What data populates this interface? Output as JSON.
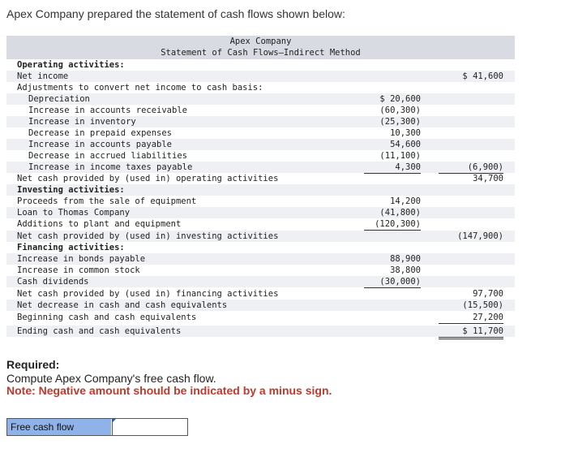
{
  "intro": "Apex Company prepared the statement of cash flows shown below:",
  "statement": {
    "company": "Apex Company",
    "title": "Statement of Cash Flows—Indirect Method",
    "rows": [
      {
        "label": "Operating activities:",
        "c1": "",
        "c2": ""
      },
      {
        "label": "Net income",
        "c1": "",
        "c2": "$ 41,600"
      },
      {
        "label": "Adjustments to convert net income to cash basis:",
        "c1": "",
        "c2": ""
      },
      {
        "label": "Depreciation",
        "c1": "$ 20,600",
        "c2": ""
      },
      {
        "label": "Increase in accounts receivable",
        "c1": "(60,300)",
        "c2": ""
      },
      {
        "label": "Increase in inventory",
        "c1": "(25,300)",
        "c2": ""
      },
      {
        "label": "Decrease in prepaid expenses",
        "c1": "10,300",
        "c2": ""
      },
      {
        "label": "Increase in accounts payable",
        "c1": "54,600",
        "c2": ""
      },
      {
        "label": "Decrease in accrued liabilities",
        "c1": "(11,100)",
        "c2": ""
      },
      {
        "label": "Increase in income taxes payable",
        "c1": "4,300",
        "c2": "(6,900)"
      },
      {
        "label": "Net cash provided by (used in) operating activities",
        "c1": "",
        "c2": "34,700"
      },
      {
        "label": "Investing activities:",
        "c1": "",
        "c2": ""
      },
      {
        "label": "Proceeds from the sale of equipment",
        "c1": "14,200",
        "c2": ""
      },
      {
        "label": "Loan to Thomas Company",
        "c1": "(41,800)",
        "c2": ""
      },
      {
        "label": "Additions to plant and equipment",
        "c1": "(120,300)",
        "c2": ""
      },
      {
        "label": "Net cash provided by (used in) investing activities",
        "c1": "",
        "c2": "(147,900)"
      },
      {
        "label": "Financing activities:",
        "c1": "",
        "c2": ""
      },
      {
        "label": "Increase in bonds payable",
        "c1": "88,900",
        "c2": ""
      },
      {
        "label": "Increase in common stock",
        "c1": "38,800",
        "c2": ""
      },
      {
        "label": "Cash dividends",
        "c1": "(30,000)",
        "c2": ""
      },
      {
        "label": "Net cash provided by (used in) financing activities",
        "c1": "",
        "c2": "97,700"
      },
      {
        "label": "Net decrease in cash and cash equivalents",
        "c1": "",
        "c2": "(15,500)"
      },
      {
        "label": "Beginning cash and cash equivalents",
        "c1": "",
        "c2": "27,200"
      },
      {
        "label": "Ending cash and cash equivalents",
        "c1": "",
        "c2": "$ 11,700"
      }
    ]
  },
  "required": {
    "heading": "Required:",
    "task": "Compute Apex Company's free cash flow.",
    "note": "Note: Negative amount should be indicated by a minus sign."
  },
  "answer": {
    "label": "Free cash flow",
    "value": ""
  }
}
